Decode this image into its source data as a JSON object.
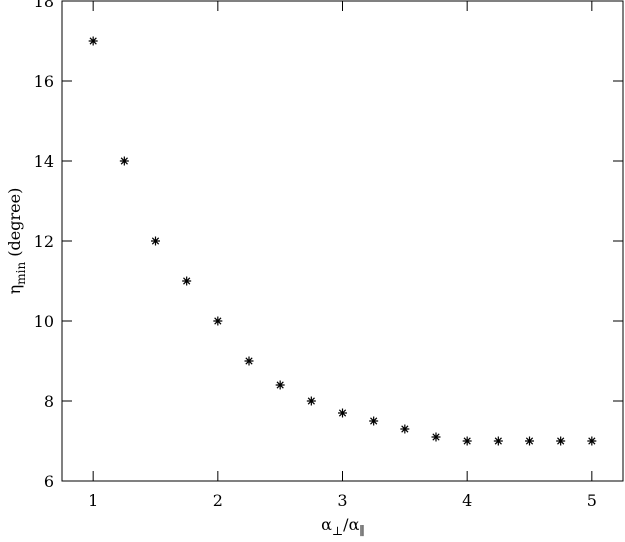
{
  "chart_data": {
    "type": "scatter",
    "xlabel": {
      "symbol": "α",
      "sub": "⊥",
      "sep": "/",
      "symbol2": "α",
      "sub2": "∥"
    },
    "ylabel": {
      "symbol": "η",
      "sub": "min",
      "text": " (degree)"
    },
    "x": [
      1,
      1.25,
      1.5,
      1.75,
      2,
      2.25,
      2.5,
      2.75,
      3,
      3.25,
      3.5,
      3.75,
      4,
      4.25,
      4.5,
      4.75,
      5
    ],
    "values": [
      17,
      14,
      12,
      11,
      10,
      9,
      8.4,
      8,
      7.7,
      7.5,
      7.3,
      7.1,
      7,
      7,
      7,
      7,
      7
    ],
    "color": "#000000",
    "xlim": [
      0.75,
      5.25
    ],
    "xticks": [
      1,
      2,
      3,
      4,
      5
    ],
    "ylim": [
      6,
      18
    ],
    "yticks": [
      6,
      8,
      10,
      12,
      14,
      16,
      18
    ],
    "grid": false
  }
}
